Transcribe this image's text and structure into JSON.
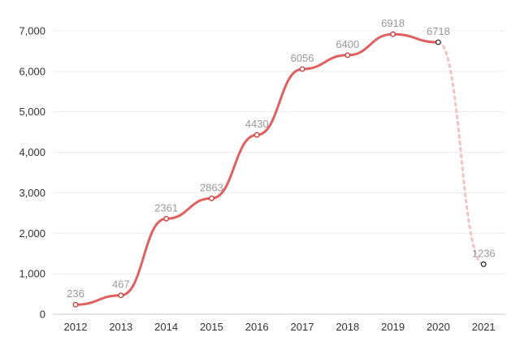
{
  "chart_data": {
    "type": "line",
    "title": "",
    "xlabel": "",
    "ylabel": "",
    "categories": [
      "2012",
      "2013",
      "2014",
      "2015",
      "2016",
      "2017",
      "2018",
      "2019",
      "2020",
      "2021"
    ],
    "values": [
      236,
      467,
      2361,
      2863,
      4430,
      6056,
      6400,
      6918,
      6718,
      1236
    ],
    "data_labels": [
      "236",
      "467",
      "2361",
      "2863",
      "4430",
      "6056",
      "6400",
      "6918",
      "6718",
      "1236"
    ],
    "ylim": [
      0,
      7000
    ],
    "yticks": [
      0,
      1000,
      2000,
      3000,
      4000,
      5000,
      6000,
      7000
    ],
    "ytick_labels": [
      "0",
      "1,000",
      "2,000",
      "3,000",
      "4,000",
      "5,000",
      "6,000",
      "7,000"
    ],
    "grid": true,
    "legend": "none",
    "line_style": "smooth",
    "dashed_from_category": "2020",
    "colors": {
      "line": "#e06060",
      "line_dashed": "#f3c3c3",
      "marker_stroke": "#c83a3a",
      "marker_stroke_last": "#333333",
      "marker_fill": "#ffffff",
      "grid": "#ebebeb",
      "tick_text": "#333333",
      "data_label_text": "#999999"
    }
  }
}
